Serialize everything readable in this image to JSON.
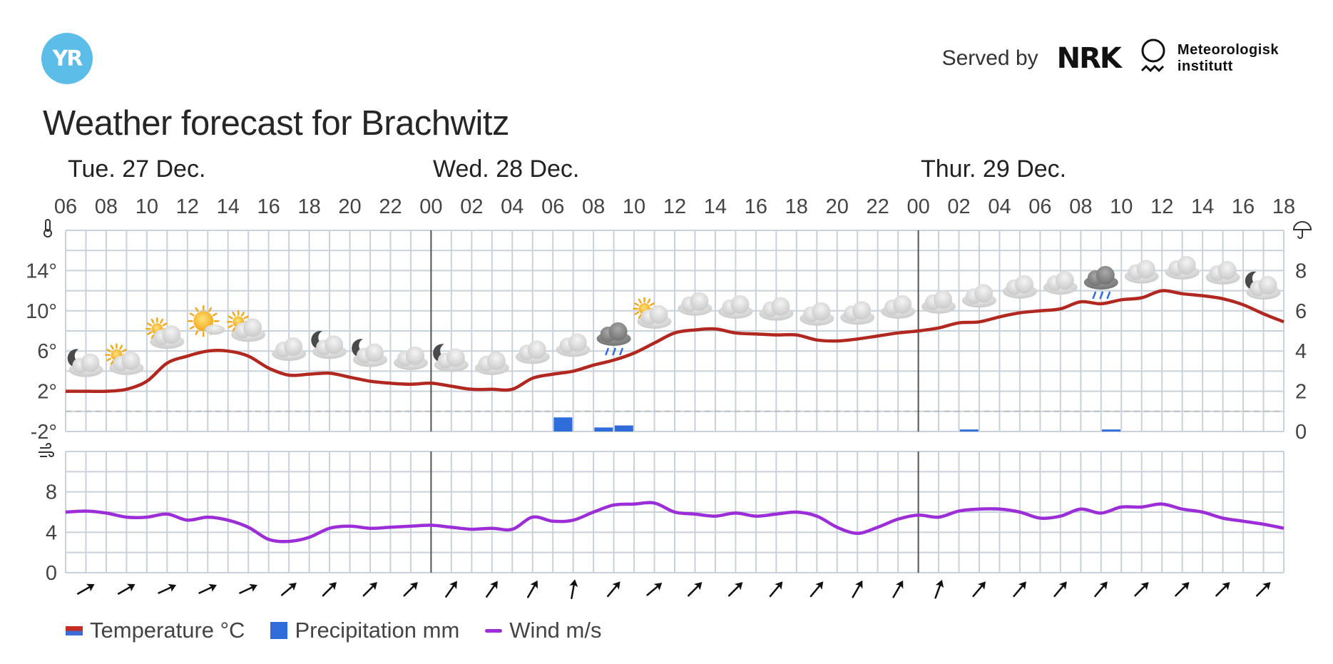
{
  "header": {
    "logo_text": "YR",
    "served_by": "Served by",
    "nrk_text": "NRK",
    "met_line1": "Meteorologisk",
    "met_line2": "institutt",
    "title": "Weather forecast for Brachwitz"
  },
  "legend": {
    "temperature": "Temperature °C",
    "precipitation": "Precipitation mm",
    "wind": "Wind m/s"
  },
  "colors": {
    "temperature_line": "#b0281f",
    "precipitation": "#2f6ddb",
    "wind_line": "#9b2ed6",
    "grid": "#c9d1da",
    "logo": "#5bbde8"
  },
  "chart_data": {
    "type": "line",
    "day_labels": [
      {
        "label": "Tue. 27 Dec.",
        "start_hour": 0
      },
      {
        "label": "Wed. 28 Dec.",
        "start_hour": 18
      },
      {
        "label": "Thur. 29 Dec.",
        "start_hour": 42
      }
    ],
    "x_tick_labels": [
      "06",
      "08",
      "10",
      "12",
      "14",
      "16",
      "18",
      "20",
      "22",
      "00",
      "02",
      "04",
      "06",
      "08",
      "10",
      "12",
      "14",
      "16",
      "18",
      "20",
      "22",
      "00",
      "02",
      "04",
      "06",
      "08",
      "10",
      "12",
      "14",
      "16",
      "18"
    ],
    "temperature": {
      "name": "Temperature °C",
      "unit": "°C",
      "y_ticks": [
        "-2°",
        "2°",
        "6°",
        "10°",
        "14°"
      ],
      "ylim": [
        -2,
        18
      ],
      "hours": [
        0,
        1,
        2,
        3,
        4,
        5,
        6,
        7,
        8,
        9,
        10,
        11,
        12,
        13,
        14,
        15,
        16,
        17,
        18,
        19,
        20,
        21,
        22,
        23,
        24,
        25,
        26,
        27,
        28,
        29,
        30,
        31,
        32,
        33,
        34,
        35,
        36,
        37,
        38,
        39,
        40,
        41,
        42,
        43,
        44,
        45,
        46,
        47,
        48,
        49,
        50,
        51,
        52,
        53,
        54,
        55,
        56,
        57,
        58,
        59,
        60
      ],
      "values": [
        2,
        2,
        2,
        2.2,
        3,
        4.8,
        5.5,
        6,
        6,
        5.5,
        4.3,
        3.6,
        3.7,
        3.8,
        3.4,
        3,
        2.8,
        2.7,
        2.8,
        2.5,
        2.2,
        2.2,
        2.2,
        3.3,
        3.7,
        4,
        4.6,
        5.1,
        5.8,
        6.8,
        7.8,
        8.1,
        8.2,
        7.8,
        7.7,
        7.6,
        7.6,
        7.1,
        7,
        7.2,
        7.5,
        7.8,
        8,
        8.3,
        8.8,
        8.9,
        9.4,
        9.8,
        10,
        10.2,
        10.9,
        10.7,
        11.1,
        11.3,
        12,
        11.7,
        11.5,
        11.2,
        10.6,
        9.7,
        8.9
      ]
    },
    "precipitation": {
      "name": "Precipitation mm",
      "unit": "mm",
      "y_ticks": [
        "0",
        "2",
        "4",
        "6",
        "8"
      ],
      "ylim": [
        0,
        10
      ],
      "bars": [
        {
          "hour": 24.5,
          "value": 0.7
        },
        {
          "hour": 26.5,
          "value": 0.2
        },
        {
          "hour": 27.5,
          "value": 0.3
        },
        {
          "hour": 44.5,
          "value": 0.1
        },
        {
          "hour": 51.5,
          "value": 0.1
        }
      ]
    },
    "wind": {
      "name": "Wind m/s",
      "unit": "m/s",
      "y_ticks": [
        "0",
        "4",
        "8"
      ],
      "ylim": [
        0,
        12
      ],
      "hours": [
        0,
        1,
        2,
        3,
        4,
        5,
        6,
        7,
        8,
        9,
        10,
        11,
        12,
        13,
        14,
        15,
        16,
        17,
        18,
        19,
        20,
        21,
        22,
        23,
        24,
        25,
        26,
        27,
        28,
        29,
        30,
        31,
        32,
        33,
        34,
        35,
        36,
        37,
        38,
        39,
        40,
        41,
        42,
        43,
        44,
        45,
        46,
        47,
        48,
        49,
        50,
        51,
        52,
        53,
        54,
        55,
        56,
        57,
        58,
        59,
        60
      ],
      "values": [
        6,
        6.1,
        5.9,
        5.5,
        5.5,
        5.8,
        5.2,
        5.5,
        5.2,
        4.5,
        3.3,
        3.1,
        3.5,
        4.4,
        4.6,
        4.4,
        4.5,
        4.6,
        4.7,
        4.5,
        4.3,
        4.4,
        4.3,
        5.5,
        5.1,
        5.2,
        6,
        6.7,
        6.8,
        6.9,
        6,
        5.8,
        5.6,
        5.9,
        5.6,
        5.8,
        6,
        5.6,
        4.5,
        3.9,
        4.5,
        5.3,
        5.7,
        5.5,
        6.1,
        6.3,
        6.3,
        6,
        5.4,
        5.6,
        6.3,
        5.9,
        6.5,
        6.5,
        6.8,
        6.3,
        6,
        5.4,
        5.1,
        4.8,
        4.4
      ]
    },
    "weather_symbols": [
      {
        "hour": 0.5,
        "icon": "partly-cloudy-night-icon"
      },
      {
        "hour": 1.5,
        "icon": "partly-cloudy-day-icon"
      },
      {
        "hour": 2.5,
        "icon": "partly-cloudy-day-icon"
      },
      {
        "hour": 3.5,
        "icon": "fair-day-icon"
      },
      {
        "hour": 4.5,
        "icon": "partly-cloudy-day-icon"
      },
      {
        "hour": 5.5,
        "icon": "cloudy-icon"
      },
      {
        "hour": 6.5,
        "icon": "partly-cloudy-night-icon"
      },
      {
        "hour": 7.5,
        "icon": "partly-cloudy-night-icon"
      },
      {
        "hour": 8.5,
        "icon": "cloudy-icon"
      },
      {
        "hour": 9.5,
        "icon": "partly-cloudy-night-icon"
      },
      {
        "hour": 10.5,
        "icon": "cloudy-icon"
      },
      {
        "hour": 11.5,
        "icon": "cloudy-icon"
      },
      {
        "hour": 12.5,
        "icon": "cloudy-icon"
      },
      {
        "hour": 13.5,
        "icon": "light-rain-icon"
      },
      {
        "hour": 14.5,
        "icon": "partly-cloudy-day-icon"
      },
      {
        "hour": 15.5,
        "icon": "cloudy-icon"
      },
      {
        "hour": 16.5,
        "icon": "cloudy-icon"
      },
      {
        "hour": 17.5,
        "icon": "cloudy-icon"
      },
      {
        "hour": 18.5,
        "icon": "cloudy-icon"
      },
      {
        "hour": 19.5,
        "icon": "cloudy-icon"
      },
      {
        "hour": 20.5,
        "icon": "cloudy-icon"
      },
      {
        "hour": 21.5,
        "icon": "cloudy-icon"
      },
      {
        "hour": 22.5,
        "icon": "cloudy-icon"
      },
      {
        "hour": 23.5,
        "icon": "cloudy-icon"
      },
      {
        "hour": 24.5,
        "icon": "cloudy-icon"
      },
      {
        "hour": 25.5,
        "icon": "light-rain-icon"
      },
      {
        "hour": 26.5,
        "icon": "cloudy-icon"
      },
      {
        "hour": 27.5,
        "icon": "cloudy-icon"
      },
      {
        "hour": 28.5,
        "icon": "cloudy-icon"
      },
      {
        "hour": 29.5,
        "icon": "partly-cloudy-night-icon"
      }
    ],
    "wind_direction_arrows_deg": [
      60,
      60,
      65,
      65,
      65,
      50,
      45,
      45,
      45,
      35,
      35,
      30,
      10,
      40,
      50,
      45,
      45,
      40,
      40,
      30,
      30,
      20,
      40,
      40,
      40,
      40,
      45,
      45,
      45,
      45
    ],
    "grid": true
  }
}
